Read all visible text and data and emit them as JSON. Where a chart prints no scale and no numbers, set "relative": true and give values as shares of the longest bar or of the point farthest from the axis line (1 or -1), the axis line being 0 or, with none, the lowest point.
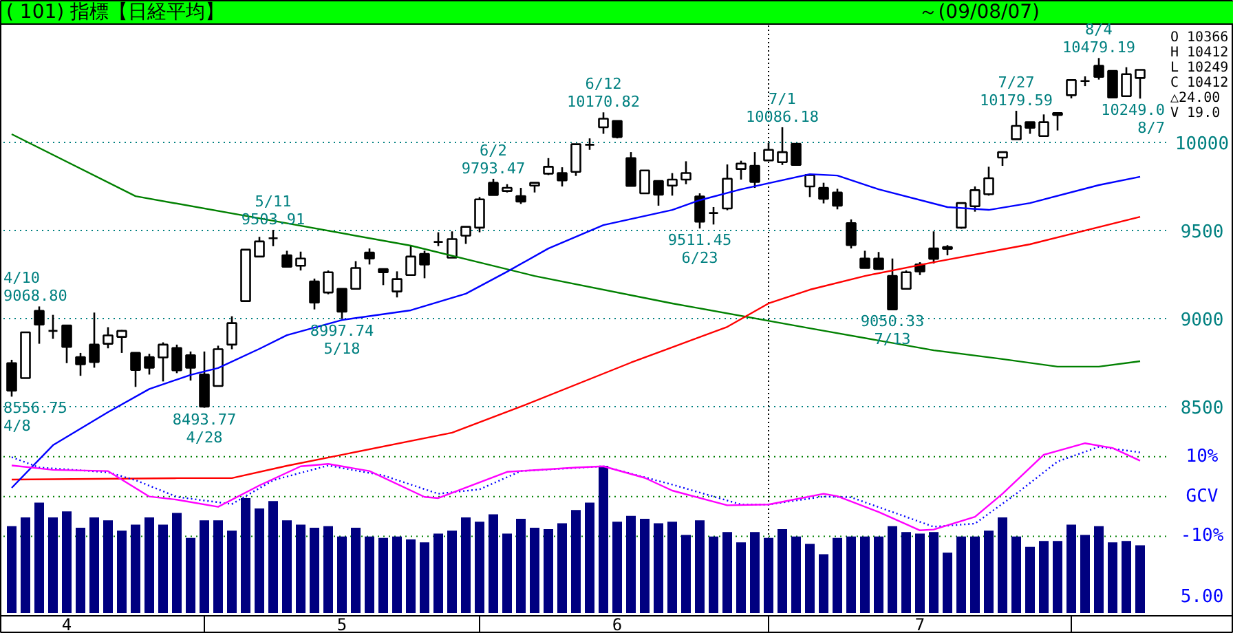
{
  "chart_data": [
    {
      "type": "candlestick",
      "title": "( 101) 指標【日経平均】",
      "subtitle": "～(09/08/07)",
      "categories": [
        null,
        null,
        null,
        null,
        "4",
        null,
        null,
        null,
        null,
        null,
        null,
        null,
        null,
        null,
        null,
        null,
        null,
        null,
        null,
        null,
        null,
        null,
        null,
        null,
        "5",
        null,
        null,
        null,
        null,
        null,
        null,
        null,
        null,
        null,
        null,
        null,
        null,
        null,
        null,
        null,
        null,
        null,
        null,
        null,
        "6",
        null,
        null,
        null,
        null,
        null,
        null,
        null,
        null,
        null,
        null,
        null,
        null,
        null,
        null,
        null,
        null,
        null,
        null,
        null,
        null,
        null,
        "7",
        null,
        null,
        null,
        null,
        null,
        null,
        null,
        null,
        null,
        null,
        null,
        null,
        null,
        null,
        null,
        null
      ],
      "ohlc": [
        [
          8747,
          8766,
          8556.75,
          8591
        ],
        [
          8662,
          8922,
          8662,
          8922
        ],
        [
          9044,
          9068.8,
          8857,
          8966
        ],
        [
          8930,
          9021,
          8885,
          8930
        ],
        [
          8961,
          8961,
          8747,
          8839
        ],
        [
          8781,
          8805,
          8675,
          8740
        ],
        [
          8852,
          9034,
          8721,
          8753
        ],
        [
          8857,
          8951,
          8831,
          8904
        ],
        [
          8896,
          8935,
          8805,
          8930
        ],
        [
          8805,
          8805,
          8612,
          8708
        ],
        [
          8781,
          8800,
          8682,
          8721
        ],
        [
          8779,
          8865,
          8643,
          8852
        ],
        [
          8833,
          8852,
          8690,
          8706
        ],
        [
          8792,
          8813,
          8648,
          8721
        ],
        [
          8682,
          8813,
          8493.77,
          8500
        ],
        [
          8617,
          8846,
          8617,
          8826
        ],
        [
          8852,
          9013,
          8826,
          8974
        ],
        [
          9099,
          9391,
          9099,
          9391
        ],
        [
          9352,
          9464,
          9352,
          9438
        ],
        [
          9456,
          9503.91,
          9411,
          9456
        ],
        [
          9359,
          9385,
          9294,
          9294
        ],
        [
          9300,
          9380,
          9273,
          9341
        ],
        [
          9211,
          9227,
          9052,
          9091
        ],
        [
          9148,
          9273,
          9138,
          9263
        ],
        [
          9169,
          9169,
          8997.74,
          9039
        ],
        [
          9169,
          9326,
          9169,
          9287
        ],
        [
          9375,
          9398,
          9307,
          9341
        ],
        [
          9281,
          9281,
          9190,
          9263
        ],
        [
          9154,
          9268,
          9120,
          9224
        ],
        [
          9247,
          9411,
          9247,
          9352
        ],
        [
          9367,
          9385,
          9229,
          9307
        ],
        [
          9435,
          9490,
          9411,
          9435
        ],
        [
          9346,
          9495,
          9346,
          9451
        ],
        [
          9471,
          9521,
          9424,
          9521
        ],
        [
          9516,
          9690,
          9490,
          9677
        ],
        [
          9771,
          9793.47,
          9701,
          9701
        ],
        [
          9724,
          9763,
          9716,
          9742
        ],
        [
          9695,
          9742,
          9651,
          9664
        ],
        [
          9755,
          9771,
          9716,
          9771
        ],
        [
          9823,
          9911,
          9815,
          9862
        ],
        [
          9826,
          9859,
          9750,
          9784
        ],
        [
          9833,
          9990,
          9810,
          9990
        ],
        [
          9987,
          10023,
          9958,
          9987
        ],
        [
          10086,
          10170.82,
          10049,
          10135
        ],
        [
          10122,
          10122,
          10023,
          10031
        ],
        [
          9911,
          9945,
          9753,
          9753
        ],
        [
          9711,
          9841,
          9711,
          9841
        ],
        [
          9781,
          9781,
          9641,
          9703
        ],
        [
          9755,
          9826,
          9698,
          9789
        ],
        [
          9789,
          9893,
          9763,
          9826
        ],
        [
          9693,
          9711,
          9511.45,
          9550
        ],
        [
          9599,
          9633,
          9534,
          9599
        ],
        [
          9625,
          9875,
          9615,
          9794
        ],
        [
          9849,
          9896,
          9789,
          9880
        ],
        [
          9867,
          9945,
          9742,
          9776
        ],
        [
          9898,
          9997,
          9898,
          9958
        ],
        [
          9888,
          10086.18,
          9872,
          9945
        ],
        [
          9992,
          9992,
          9872,
          9872
        ],
        [
          9750,
          9815,
          9690,
          9815
        ],
        [
          9742,
          9771,
          9654,
          9680
        ],
        [
          9716,
          9737,
          9620,
          9641
        ],
        [
          9542,
          9563,
          9398,
          9417
        ],
        [
          9341,
          9385,
          9287,
          9287
        ],
        [
          9341,
          9378,
          9281,
          9281
        ],
        [
          9242,
          9341,
          9050.33,
          9052
        ],
        [
          9169,
          9273,
          9169,
          9263
        ],
        [
          9307,
          9320,
          9247,
          9268
        ],
        [
          9398,
          9495,
          9313,
          9339
        ],
        [
          9406,
          9417,
          9359,
          9396
        ],
        [
          9516,
          9656,
          9510,
          9656
        ],
        [
          9638,
          9750,
          9607,
          9729
        ],
        [
          9706,
          9862,
          9698,
          9797
        ],
        [
          9914,
          9945,
          9867,
          9945
        ],
        [
          10018,
          10179.59,
          10018,
          10094
        ],
        [
          10115,
          10115,
          10049,
          10083
        ],
        [
          10036,
          10159,
          10036,
          10115
        ],
        [
          10167,
          10167,
          10068,
          10156
        ],
        [
          10268,
          10354,
          10250,
          10354
        ],
        [
          10349,
          10375,
          10320,
          10349
        ],
        [
          10435,
          10479.19,
          10357,
          10372
        ],
        [
          10406,
          10406,
          10255,
          10255
        ],
        [
          10263,
          10427,
          10263,
          10388
        ],
        [
          10366,
          10412,
          10249.0,
          10412
        ]
      ],
      "series": [
        {
          "type": "line",
          "color": "#008000",
          "values": [
            10047,
            null,
            null,
            null,
            null,
            null,
            null,
            null,
            null,
            9695,
            null,
            null,
            null,
            null,
            null,
            null,
            null,
            null,
            null,
            9555,
            null,
            null,
            null,
            null,
            null,
            null,
            null,
            null,
            null,
            9414,
            null,
            null,
            null,
            null,
            null,
            null,
            null,
            null,
            9242,
            null,
            null,
            null,
            null,
            null,
            null,
            null,
            null,
            null,
            9086,
            null,
            null,
            null,
            null,
            null,
            null,
            null,
            null,
            null,
            8945,
            null,
            null,
            null,
            null,
            null,
            null,
            null,
            null,
            8820,
            null,
            null,
            null,
            null,
            8770,
            null,
            null,
            null,
            8727,
            null,
            null,
            8727,
            null,
            null,
            8758
          ]
        },
        {
          "type": "line",
          "color": "#ff0000",
          "values": [
            8086,
            null,
            null,
            null,
            null,
            null,
            null,
            null,
            null,
            null,
            null,
            null,
            8094,
            null,
            null,
            null,
            8094,
            null,
            null,
            null,
            8164,
            null,
            null,
            null,
            null,
            null,
            null,
            null,
            null,
            null,
            null,
            null,
            8352,
            null,
            null,
            null,
            null,
            8500,
            null,
            null,
            null,
            null,
            null,
            null,
            null,
            8750,
            null,
            null,
            null,
            null,
            null,
            null,
            8953,
            null,
            null,
            9086,
            null,
            null,
            9164,
            null,
            null,
            null,
            9242,
            null,
            null,
            null,
            null,
            9320,
            null,
            null,
            null,
            null,
            null,
            null,
            9422,
            null,
            null,
            null,
            null,
            null,
            null,
            null,
            9578
          ]
        },
        {
          "type": "line",
          "color": "#0000ff",
          "values": [
            8039,
            null,
            null,
            8281,
            null,
            null,
            null,
            8469,
            null,
            null,
            8600,
            null,
            null,
            8680,
            null,
            8719,
            null,
            null,
            8828,
            null,
            8906,
            null,
            null,
            null,
            8992,
            null,
            null,
            null,
            null,
            9047,
            null,
            null,
            null,
            9141,
            null,
            null,
            9266,
            null,
            null,
            9398,
            null,
            null,
            null,
            9531,
            null,
            null,
            null,
            null,
            9617,
            null,
            9672,
            null,
            null,
            9734,
            null,
            null,
            null,
            null,
            9820,
            null,
            9812,
            null,
            null,
            9734,
            null,
            null,
            null,
            null,
            9633,
            null,
            null,
            9617,
            null,
            null,
            9656,
            null,
            null,
            null,
            null,
            9758,
            null,
            null,
            9805
          ]
        },
        {
          "type": "line",
          "axis": "y2",
          "color": "#0000ff",
          "line_style": "dotted",
          "values": [
            9.9,
            null,
            7.3,
            null,
            null,
            null,
            null,
            6.1,
            null,
            4.1,
            null,
            null,
            -0.1,
            null,
            null,
            null,
            -1.9,
            null,
            null,
            4.1,
            null,
            null,
            null,
            7.8,
            null,
            null,
            null,
            5.3,
            null,
            null,
            null,
            0.7,
            null,
            null,
            1.8,
            null,
            null,
            6.4,
            null,
            null,
            null,
            null,
            null,
            7.6,
            null,
            null,
            null,
            null,
            3.0,
            null,
            null,
            null,
            null,
            -2.0,
            null,
            -2.0,
            null,
            null,
            null,
            0,
            null,
            -0.2,
            null,
            null,
            null,
            null,
            null,
            -7.6,
            null,
            null,
            -6.8,
            null,
            null,
            0.7,
            null,
            null,
            8.8,
            null,
            null,
            12.5,
            null,
            null,
            11.1
          ]
        },
        {
          "type": "line",
          "axis": "y2",
          "color": "#ff00ff",
          "values": [
            7.8,
            null,
            null,
            6.7,
            null,
            null,
            null,
            6.4,
            null,
            null,
            0,
            null,
            -0.8,
            null,
            null,
            -2.6,
            null,
            null,
            2.8,
            null,
            null,
            7.6,
            null,
            8.2,
            null,
            null,
            6.4,
            null,
            null,
            null,
            -0.1,
            -0.4,
            null,
            null,
            null,
            null,
            6.2,
            null,
            null,
            null,
            null,
            7.3,
            null,
            7.6,
            null,
            null,
            4.7,
            null,
            1.5,
            null,
            null,
            null,
            -2.2,
            null,
            null,
            -2.0,
            null,
            null,
            null,
            0.7,
            0.1,
            null,
            null,
            -3.9,
            null,
            null,
            -8.5,
            -8.3,
            null,
            null,
            -5.1,
            null,
            0.7,
            null,
            null,
            10.5,
            null,
            null,
            13.4,
            null,
            12.2,
            null,
            9.0
          ]
        }
      ],
      "ylim": [
        7328,
        10672
      ],
      "yticks": [
        8500,
        9000,
        9500,
        10000
      ],
      "y2lim": [
        -29.3,
        118.8
      ],
      "y2ticks": [
        {
          "value": 10,
          "label": "10%"
        },
        {
          "value": 0,
          "label": "GCV"
        },
        {
          "value": -10,
          "label": "-10%"
        }
      ],
      "grid": "y",
      "tick_labels": "y",
      "annotations": [
        "O 10366",
        "H 10412",
        "L 10249",
        "C 10412",
        "△24.00",
        "V  19.0",
        "8556.75\n4/8",
        {
          "text": "4/10\n9068.80",
          "y": 9068.8
        },
        {
          "text": "8493.77\n4/28",
          "y": 8493.77
        },
        {
          "text": "5/11\n9503.91",
          "y": 9503.91
        },
        {
          "text": "8997.74\n5/18",
          "y": 8997.74
        },
        {
          "text": "6/2\n9793.47",
          "y": 9793.47
        },
        {
          "text": "6/12\n10170.82",
          "y": 10170.82
        },
        {
          "text": "9511.45\n6/23",
          "y": 9511.45
        },
        {
          "text": "7/1\n10086.18",
          "y": 10086.18
        },
        {
          "text": "9050.33\n7/13",
          "y": 9050.33
        },
        {
          "text": "7/27\n10179.59",
          "y": 10179.59
        },
        {
          "text": "8/4\n10479.19",
          "y": 10479.19
        },
        {
          "text": "10249.0\n8/7",
          "y": 10249.0
        }
      ]
    },
    {
      "type": "bar",
      "relative": true,
      "color": "#000080",
      "categories": [
        null,
        null,
        null,
        null,
        "4",
        null,
        null,
        null,
        null,
        null,
        null,
        null,
        null,
        null,
        null,
        null,
        null,
        null,
        null,
        null,
        null,
        null,
        null,
        null,
        "5",
        null,
        null,
        null,
        null,
        null,
        null,
        null,
        null,
        null,
        null,
        null,
        null,
        null,
        null,
        null,
        null,
        null,
        null,
        null,
        "6",
        null,
        null,
        null,
        null,
        null,
        null,
        null,
        null,
        null,
        null,
        null,
        null,
        null,
        null,
        null,
        null,
        null,
        null,
        null,
        null,
        null,
        "7",
        null,
        null,
        null,
        null,
        null,
        null,
        null,
        null,
        null,
        null,
        null,
        null,
        null,
        null,
        null,
        null
      ],
      "values": [
        0.59,
        0.65,
        0.75,
        0.65,
        0.69,
        0.58,
        0.65,
        0.63,
        0.56,
        0.6,
        0.65,
        0.6,
        0.68,
        0.51,
        0.63,
        0.63,
        0.56,
        0.78,
        0.71,
        0.76,
        0.63,
        0.6,
        0.58,
        0.59,
        0.52,
        0.58,
        0.52,
        0.51,
        0.52,
        0.5,
        0.48,
        0.54,
        0.56,
        0.65,
        0.62,
        0.67,
        0.54,
        0.64,
        0.58,
        0.57,
        0.61,
        0.7,
        0.75,
        1,
        0.62,
        0.66,
        0.64,
        0.61,
        0.62,
        0.53,
        0.63,
        0.52,
        0.55,
        0.48,
        0.55,
        0.51,
        0.57,
        0.52,
        0.47,
        0.4,
        0.51,
        0.52,
        0.52,
        0.52,
        0.59,
        0.55,
        0.54,
        0.55,
        0.41,
        0.52,
        0.52,
        0.56,
        0.65,
        0.52,
        0.45,
        0.49,
        0.49,
        0.6,
        0.53,
        0.59,
        0.48,
        0.49,
        0.46
      ],
      "annotations": [
        "5.00"
      ]
    }
  ]
}
